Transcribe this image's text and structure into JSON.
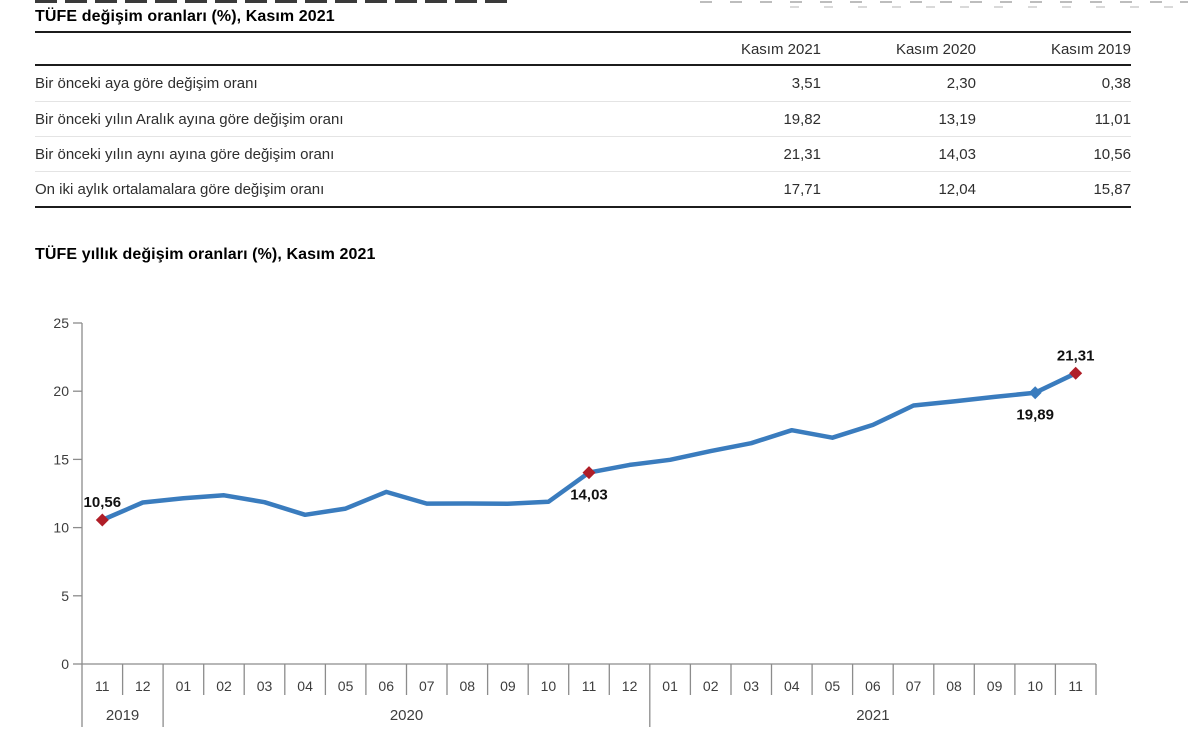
{
  "page": {
    "background": "#ffffff"
  },
  "table": {
    "title": "TÜFE değişim oranları (%), Kasım 2021",
    "columns": [
      "Kasım 2021",
      "Kasım 2020",
      "Kasım 2019"
    ],
    "rows": [
      {
        "label": "Bir önceki aya göre değişim oranı",
        "values": [
          "3,51",
          "2,30",
          "0,38"
        ]
      },
      {
        "label": "Bir önceki yılın Aralık ayına göre değişim oranı",
        "values": [
          "19,82",
          "13,19",
          "11,01"
        ]
      },
      {
        "label": "Bir önceki yılın aynı ayına göre değişim oranı",
        "values": [
          "21,31",
          "14,03",
          "10,56"
        ]
      },
      {
        "label": "On iki aylık ortalamalara göre değişim oranı",
        "values": [
          "17,71",
          "12,04",
          "15,87"
        ]
      }
    ]
  },
  "chart": {
    "title": "TÜFE yıllık değişim oranları (%), Kasım 2021"
  },
  "chart_data": [
    {
      "type": "table",
      "title": "TÜFE değişim oranları (%), Kasım 2021",
      "columns": [
        "",
        "Kasım 2021",
        "Kasım 2020",
        "Kasım 2019"
      ],
      "rows": [
        [
          "Bir önceki aya göre değişim oranı",
          3.51,
          2.3,
          0.38
        ],
        [
          "Bir önceki yılın Aralık ayına göre değişim oranı",
          19.82,
          13.19,
          11.01
        ],
        [
          "Bir önceki yılın aynı ayına göre değişim oranı",
          21.31,
          14.03,
          10.56
        ],
        [
          "On iki aylık ortalamalara göre değişim oranı",
          17.71,
          12.04,
          15.87
        ]
      ]
    },
    {
      "type": "line",
      "title": "TÜFE yıllık değişim oranları (%), Kasım 2021",
      "xlabel": "",
      "ylabel": "",
      "ylim": [
        0,
        25
      ],
      "yticks": [
        0,
        5,
        10,
        15,
        20,
        25
      ],
      "grid": false,
      "legend": null,
      "x_months": [
        "11",
        "12",
        "01",
        "02",
        "03",
        "04",
        "05",
        "06",
        "07",
        "08",
        "09",
        "10",
        "11",
        "12",
        "01",
        "02",
        "03",
        "04",
        "05",
        "06",
        "07",
        "08",
        "09",
        "10",
        "11"
      ],
      "x_years": [
        {
          "label": "2019",
          "span": 2
        },
        {
          "label": "2020",
          "span": 12
        },
        {
          "label": "2021",
          "span": 11
        }
      ],
      "values": [
        10.56,
        11.84,
        12.15,
        12.37,
        11.86,
        10.94,
        11.39,
        12.62,
        11.76,
        11.77,
        11.75,
        11.89,
        14.03,
        14.6,
        14.97,
        15.61,
        16.19,
        17.14,
        16.59,
        17.53,
        18.95,
        19.25,
        19.58,
        19.89,
        21.31
      ],
      "annotations": [
        {
          "index": 0,
          "label": "10,56",
          "position": "above",
          "marker": "red-diamond"
        },
        {
          "index": 12,
          "label": "14,03",
          "position": "below",
          "marker": "red-diamond"
        },
        {
          "index": 23,
          "label": "19,89",
          "position": "below",
          "marker": "blue-diamond"
        },
        {
          "index": 24,
          "label": "21,31",
          "position": "above",
          "marker": "red-diamond"
        }
      ],
      "colors": {
        "line": "#3A7CBE",
        "marker_red": "#B01E28",
        "marker_blue": "#3A7CBE",
        "axis": "#8c8c8c",
        "tick_text": "#3d3d3d",
        "label_text": "#111111"
      }
    }
  ]
}
